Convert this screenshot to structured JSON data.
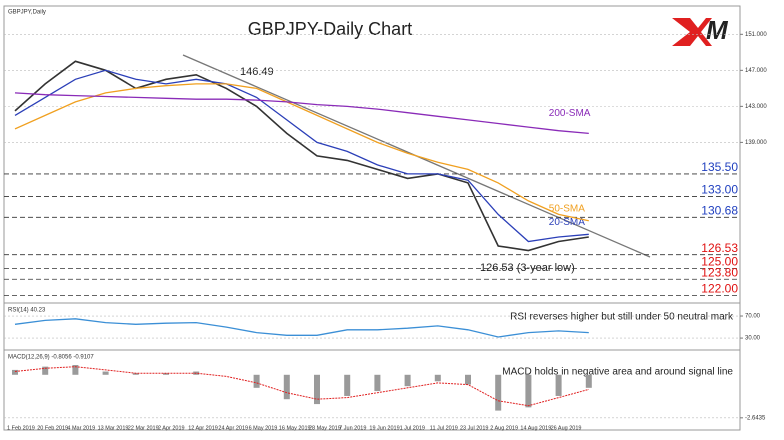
{
  "chart_data": [
    {
      "type": "line",
      "title": "GBPJPY-Daily Chart",
      "subtitle": "GBPJPY,Daily",
      "categories": [
        "1 Feb 2019",
        "20 Feb 2019",
        "4 Mar 2019",
        "13 Mar 2019",
        "22 Mar 2019",
        "2 Apr 2019",
        "12 Apr 2019",
        "24 Apr 2019",
        "6 May 2019",
        "16 May 2019",
        "28 May 2019",
        "7 Jun 2019",
        "19 Jun 2019",
        "1 Jul 2019",
        "11 Jul 2019",
        "23 Jul 2019",
        "2 Aug 2019",
        "14 Aug 2019",
        "26 Aug 2019",
        null
      ],
      "series": [
        {
          "name": "GBPJPY",
          "color": "#333333",
          "values": [
            142.5,
            145.5,
            148,
            147,
            145,
            146,
            146.5,
            145,
            143,
            140,
            137.5,
            137,
            136,
            135,
            135.5,
            134.5,
            127.5,
            127,
            128,
            128.5
          ]
        },
        {
          "name": "20-SMA",
          "color": "#2b3fb8",
          "values": [
            142,
            144,
            146,
            147,
            146,
            145.5,
            146,
            145.5,
            144,
            141.5,
            139,
            138,
            136.5,
            135.5,
            135.5,
            134.8,
            131,
            128,
            128.5,
            128.8
          ]
        },
        {
          "name": "50-SMA",
          "color": "#f0a020",
          "values": [
            140.5,
            142,
            143.5,
            144.5,
            145,
            145.3,
            145.5,
            145.5,
            145,
            143.5,
            142,
            140.5,
            139,
            137.8,
            136.8,
            136,
            134.5,
            132.5,
            131,
            130.3
          ]
        },
        {
          "name": "200-SMA",
          "color": "#8a2bb8",
          "values": [
            144.5,
            144.3,
            144.2,
            144.1,
            144,
            143.9,
            143.8,
            143.8,
            143.7,
            143.5,
            143.2,
            143,
            142.7,
            142.3,
            141.9,
            141.5,
            141.1,
            140.7,
            140.3,
            140
          ]
        }
      ],
      "ylim": [
        121.5,
        153.7
      ],
      "yticks": [
        {
          "value": 151,
          "label": "151.000"
        },
        {
          "value": 147,
          "label": "147.000"
        },
        {
          "value": 143,
          "label": "143.000"
        },
        {
          "value": 139,
          "label": "139.000"
        }
      ],
      "levels": [
        {
          "value": 135.5,
          "label": "135.50",
          "color": "#1f3fbf"
        },
        {
          "value": 133,
          "label": "133.00",
          "color": "#1f3fbf"
        },
        {
          "value": 130.68,
          "color": "#1f3fbf"
        },
        {
          "value": 126.53,
          "color": "#e01010"
        },
        {
          "value": 125,
          "label": "125.00",
          "color": "#e01010"
        },
        {
          "value": 123.8,
          "label": "123.80",
          "color": "#e01010"
        },
        {
          "value": 122,
          "label": "122.00",
          "color": "#e01010"
        }
      ],
      "peak": 146.49,
      "low_note": "126.53 (3-year low)"
    },
    {
      "type": "line",
      "title": "RSI(14) 40.23",
      "annotation": "RSI reverses higher but still under 50 neutral mark",
      "series": [
        {
          "name": "RSI(14)",
          "color": "#3b8fd6",
          "values": [
            55,
            62,
            65,
            58,
            55,
            57,
            58,
            50,
            40,
            35,
            35,
            45,
            45,
            48,
            52,
            45,
            32,
            40,
            43,
            40
          ]
        }
      ],
      "ylim": [
        12,
        90
      ],
      "yticks": [
        {
          "value": 70,
          "label": "70.00"
        },
        {
          "value": 30,
          "label": "30.00"
        }
      ]
    },
    {
      "type": "macd",
      "title": "MACD(12,26,9) -0.8056 -0.9107",
      "annotation": "MACD holds in negative area and around signal line",
      "series": [
        {
          "name": "MACD",
          "color": "#9a9a9a",
          "values": [
            0.3,
            0.5,
            0.6,
            0.2,
            0.1,
            0.1,
            0.2,
            0,
            -0.8,
            -1.5,
            -1.8,
            -1.3,
            -1,
            -0.7,
            -0.4,
            -0.6,
            -2.2,
            -2,
            -1.3,
            -0.8
          ]
        },
        {
          "name": "Signal",
          "color": "#e02020",
          "values": [
            0.2,
            0.4,
            0.5,
            0.3,
            0.1,
            0.1,
            0.1,
            -0.1,
            -0.5,
            -1.1,
            -1.5,
            -1.4,
            -1.1,
            -0.8,
            -0.5,
            -0.6,
            -1.6,
            -1.9,
            -1.4,
            -0.9
          ]
        }
      ],
      "ylim": [
        -2.9,
        1.4
      ],
      "yticks": [
        -2.6435
      ]
    }
  ]
}
